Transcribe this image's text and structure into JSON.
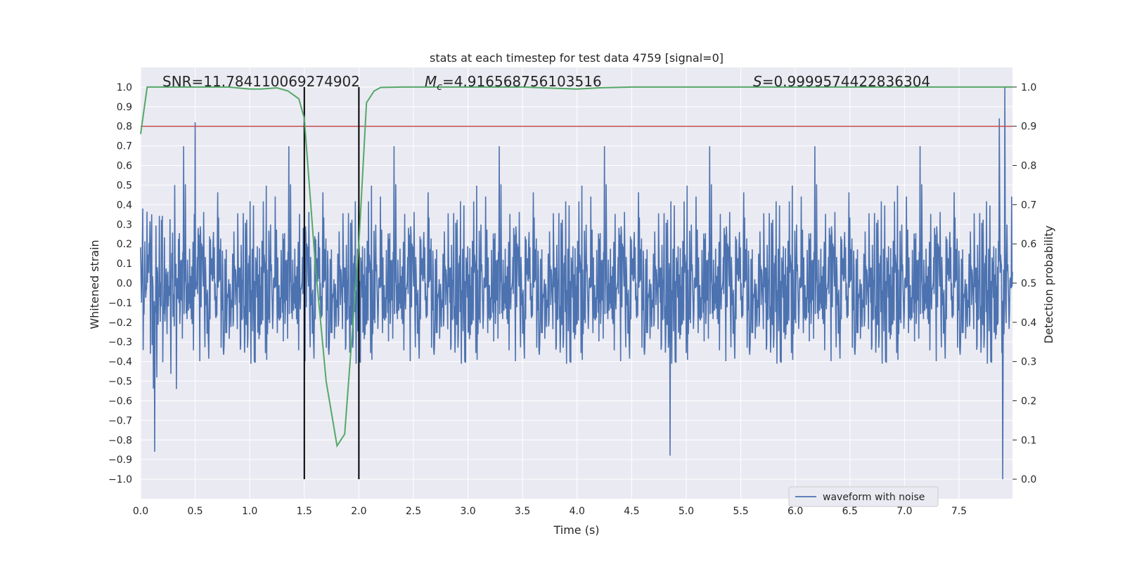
{
  "chart_data": {
    "type": "line",
    "title": "stats at each timestep for test data 4759 [signal=0]",
    "xlabel": "Time (s)",
    "ylabel_left": "Whitened strain",
    "ylabel_right": "Detection probability",
    "xlim": [
      0.0,
      7.99
    ],
    "ylim_left": [
      -1.1,
      1.1
    ],
    "ylim_right": [
      -0.05,
      1.05
    ],
    "x_ticks": [
      "0.0",
      "0.5",
      "1.0",
      "1.5",
      "2.0",
      "2.5",
      "3.0",
      "3.5",
      "4.0",
      "4.5",
      "5.0",
      "5.5",
      "6.0",
      "6.5",
      "7.0",
      "7.5"
    ],
    "y_left_ticks": [
      "1.0",
      "0.9",
      "0.8",
      "0.7",
      "0.6",
      "0.5",
      "0.4",
      "0.3",
      "0.2",
      "0.1",
      "0.0",
      "−0.1",
      "−0.2",
      "−0.3",
      "−0.4",
      "−0.5",
      "−0.6",
      "−0.7",
      "−0.8",
      "−0.9",
      "−1.0"
    ],
    "y_right_ticks": [
      "1.0",
      "0.9",
      "0.8",
      "0.7",
      "0.6",
      "0.5",
      "0.4",
      "0.3",
      "0.2",
      "0.1",
      "0.0"
    ],
    "grid": true,
    "annotations": {
      "snr": "SNR=11.784110069274902",
      "mc_symbol": "M",
      "mc_sub": "c",
      "mc_value": "=4.916568756103516",
      "s_symbol": "S",
      "s_value": "=0.9999574422836304"
    },
    "vlines": [
      1.5,
      2.0
    ],
    "threshold": 0.9,
    "legend": {
      "label": "waveform with noise",
      "loc": "lower right"
    },
    "series": [
      {
        "name": "waveform with noise",
        "color": "#4c72b0",
        "axis": "left",
        "noise_sigma": 0.22,
        "max_abs": 1.0,
        "n_points": 2048,
        "x_range": [
          0.0,
          7.99
        ],
        "notable_peaks": [
          [
            0.5,
            0.82
          ],
          [
            7.9,
            -1.0
          ],
          [
            7.92,
            1.0
          ],
          [
            7.87,
            0.84
          ],
          [
            4.85,
            -0.88
          ],
          [
            0.13,
            -0.86
          ]
        ]
      },
      {
        "name": "detection probability",
        "color": "#55a868",
        "axis": "right",
        "x": [
          0.0,
          0.06,
          0.2,
          0.5,
          0.8,
          1.0,
          1.1,
          1.25,
          1.35,
          1.45,
          1.5,
          1.6,
          1.7,
          1.8,
          1.87,
          2.0,
          2.07,
          2.14,
          2.2,
          2.4,
          3.0,
          3.5,
          3.8,
          4.0,
          4.2,
          4.5,
          5.0,
          6.0,
          7.0,
          7.99
        ],
        "y": [
          0.88,
          1.0,
          1.0,
          1.0,
          1.0,
          0.995,
          0.995,
          0.998,
          0.99,
          0.97,
          0.92,
          0.55,
          0.25,
          0.085,
          0.115,
          0.6,
          0.96,
          0.99,
          0.999,
          1.0,
          1.0,
          1.0,
          0.997,
          0.995,
          0.998,
          1.0,
          1.0,
          1.0,
          1.0,
          1.0
        ]
      }
    ],
    "colors": {
      "background": "#eaeaf2",
      "grid": "#ffffff",
      "threshold": "#c44e52",
      "vline": "#000000",
      "text": "#262626"
    }
  }
}
